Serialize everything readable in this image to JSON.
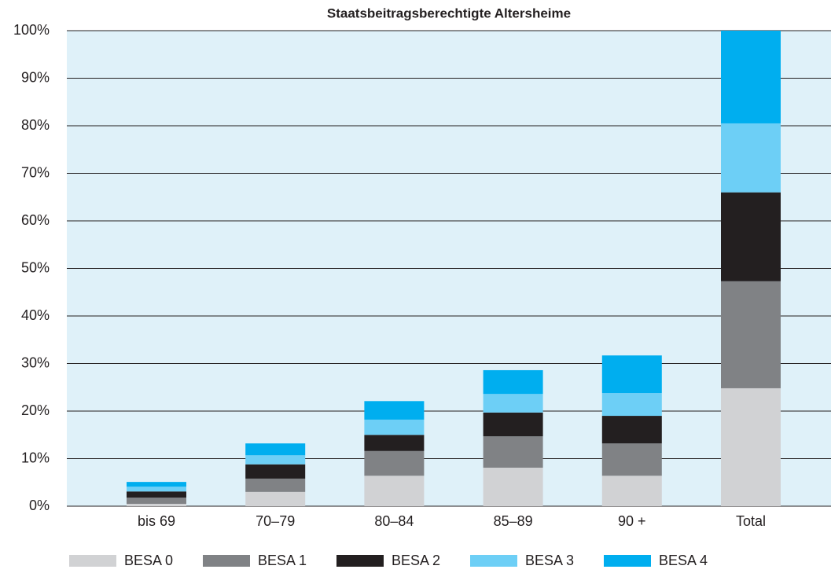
{
  "chart_data": {
    "type": "stacked_bar",
    "title": "Staatsbeitragsberechtigte Altersheime",
    "categories": [
      "bis 69",
      "70–79",
      "80–84",
      "85–89",
      "90 +",
      "Total"
    ],
    "series": [
      {
        "name": "BESA 0",
        "color": "#d1d2d4",
        "values": [
          0.5,
          3.0,
          6.4,
          8.1,
          6.4,
          24.8
        ]
      },
      {
        "name": "BESA 1",
        "color": "#808285",
        "values": [
          1.3,
          2.8,
          5.2,
          6.6,
          6.8,
          22.5
        ]
      },
      {
        "name": "BESA 2",
        "color": "#231f20",
        "values": [
          1.3,
          3.0,
          3.4,
          5.0,
          5.8,
          18.7
        ]
      },
      {
        "name": "BESA 3",
        "color": "#6dcff6",
        "values": [
          1.0,
          1.9,
          3.2,
          3.9,
          4.8,
          14.5
        ]
      },
      {
        "name": "BESA 4",
        "color": "#00aeef",
        "values": [
          1.0,
          2.5,
          3.9,
          5.0,
          7.9,
          19.5
        ]
      }
    ],
    "ylim": [
      0,
      100
    ],
    "yticks": [
      {
        "value": 0,
        "label": "0%"
      },
      {
        "value": 10,
        "label": "10%"
      },
      {
        "value": 20,
        "label": "20%"
      },
      {
        "value": 30,
        "label": "30%"
      },
      {
        "value": 40,
        "label": "40%"
      },
      {
        "value": 50,
        "label": "50%"
      },
      {
        "value": 60,
        "label": "60%"
      },
      {
        "value": 70,
        "label": "70%"
      },
      {
        "value": 80,
        "label": "80%"
      },
      {
        "value": 90,
        "label": "90%"
      },
      {
        "value": 100,
        "label": "100%"
      }
    ],
    "grid": true,
    "legend": "bottom"
  }
}
